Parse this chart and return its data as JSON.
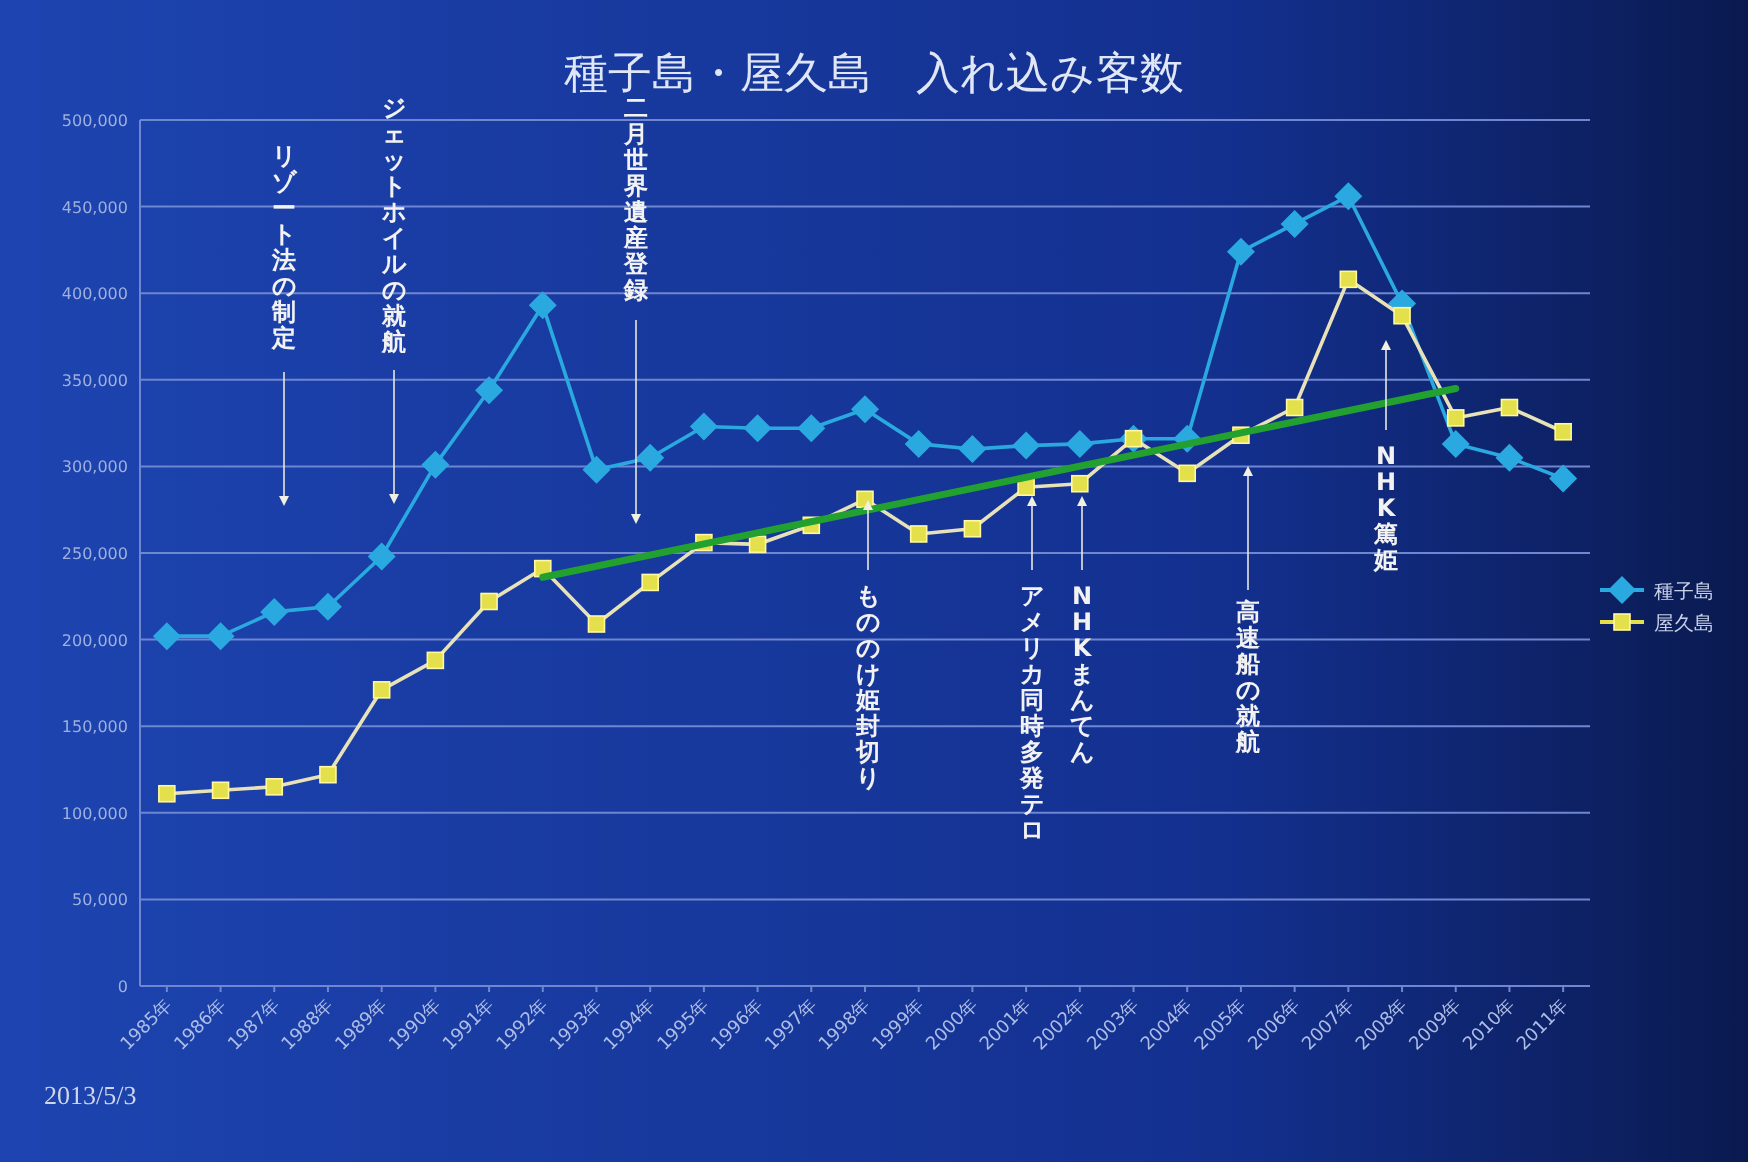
{
  "chart_data": {
    "type": "line",
    "title": "種子島・屋久島　入れ込み客数",
    "categories": [
      "1985年",
      "1986年",
      "1987年",
      "1988年",
      "1989年",
      "1990年",
      "1991年",
      "1992年",
      "1993年",
      "1994年",
      "1995年",
      "1996年",
      "1997年",
      "1998年",
      "1999年",
      "2000年",
      "2001年",
      "2002年",
      "2003年",
      "2004年",
      "2005年",
      "2006年",
      "2007年",
      "2008年",
      "2009年",
      "2010年",
      "2011年"
    ],
    "series": [
      {
        "name": "種子島",
        "color": "#2aa9e0",
        "marker": "diamond",
        "values": [
          202000,
          202000,
          216000,
          219000,
          248000,
          301000,
          344000,
          393000,
          298000,
          305000,
          323000,
          322000,
          322000,
          333000,
          313000,
          310000,
          312000,
          313000,
          316000,
          316000,
          424000,
          440000,
          456000,
          394000,
          313000,
          305000,
          293000
        ]
      },
      {
        "name": "屋久島",
        "color": "#e4e04c",
        "marker": "square",
        "values": [
          111000,
          113000,
          115000,
          122000,
          171000,
          188000,
          222000,
          241000,
          209000,
          233000,
          256000,
          255000,
          266000,
          281000,
          261000,
          264000,
          288000,
          290000,
          316000,
          296000,
          318000,
          334000,
          408000,
          387000,
          328000,
          334000,
          320000
        ]
      },
      {
        "type": "line",
        "color": "#22a030",
        "marker": "none",
        "x": [
          "1992年",
          "2009年"
        ],
        "values": [
          236000,
          345000
        ]
      }
    ],
    "ylim": [
      0,
      500000
    ],
    "yticks": [
      {
        "value": 0,
        "label": "0"
      },
      {
        "value": 50000,
        "label": "50,000"
      },
      {
        "value": 100000,
        "label": "100,000"
      },
      {
        "value": 150000,
        "label": "150,000"
      },
      {
        "value": 200000,
        "label": "200,000"
      },
      {
        "value": 250000,
        "label": "250,000"
      },
      {
        "value": 300000,
        "label": "300,000"
      },
      {
        "value": 350000,
        "label": "350,000"
      },
      {
        "value": 400000,
        "label": "400,000"
      },
      {
        "value": 450000,
        "label": "450,000"
      },
      {
        "value": 500000,
        "label": "500,000"
      }
    ],
    "grid": "y",
    "legend": "right",
    "annotations": [
      "リゾート法の制定",
      "ジェットホイルの就航",
      "二月世界遺産登録",
      "もののけ姫封切り",
      "アメリカ同時多発テロ",
      "NHKまんてん",
      "高速船の就航",
      "NHK篤姫",
      "2013/5/3"
    ]
  }
}
